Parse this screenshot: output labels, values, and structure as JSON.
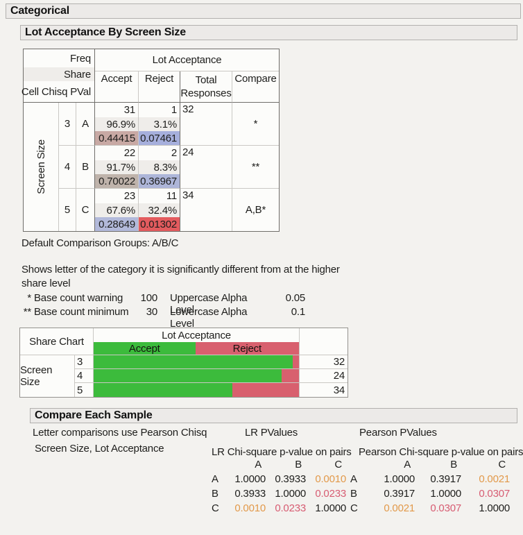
{
  "colors": {
    "accent_green": "#3cbb3c",
    "accent_red": "#d8606e",
    "sig_orange": "#e2994a",
    "sig_rose": "#d75c72"
  },
  "outline": {
    "categorical": "Categorical",
    "lot_acceptance_by_screen_size": "Lot Acceptance By Screen Size",
    "compare_each_sample": "Compare Each Sample"
  },
  "freq_table": {
    "stub_lines": [
      "Freq",
      "Share",
      "Cell Chisq PVal"
    ],
    "group_header": "Lot Acceptance",
    "col_headers": [
      "Accept",
      "Reject",
      "Total Responses",
      "Compare"
    ],
    "row_axis": "Screen Size",
    "rows": [
      {
        "level": "3",
        "letter": "A",
        "accept": {
          "freq": "31",
          "share": "96.9%",
          "pval": "0.44415",
          "pval_bg": "#c8a9a4"
        },
        "reject": {
          "freq": "1",
          "share": "3.1%",
          "pval": "0.07461",
          "pval_bg": "#a6afdc"
        },
        "total": "32",
        "compare": "*"
      },
      {
        "level": "4",
        "letter": "B",
        "accept": {
          "freq": "22",
          "share": "91.7%",
          "pval": "0.70022",
          "pval_bg": "#bfb3ab"
        },
        "reject": {
          "freq": "2",
          "share": "8.3%",
          "pval": "0.36967",
          "pval_bg": "#adb5d8"
        },
        "total": "24",
        "compare": "**"
      },
      {
        "level": "5",
        "letter": "C",
        "accept": {
          "freq": "23",
          "share": "67.6%",
          "pval": "0.28649",
          "pval_bg": "#b2b9da"
        },
        "reject": {
          "freq": "11",
          "share": "32.4%",
          "pval": "0.01302",
          "pval_bg": "#e35b5e"
        },
        "total": "34",
        "compare": "A,B*"
      }
    ]
  },
  "notes": {
    "default_groups": "Default Comparison Groups: A/B/C",
    "shows_letter_line1": "Shows letter of the category it is significantly different from at the higher",
    "shows_letter_line2": "share level",
    "legend_rows": [
      {
        "star": "*",
        "label": "Base count warning",
        "value": "100",
        "label2": "Uppercase Alpha Level",
        "value2": "0.05"
      },
      {
        "star": "**",
        "label": "Base count minimum",
        "value": "30",
        "label2": "Lowercase Alpha Level",
        "value2": "0.1"
      }
    ]
  },
  "share_chart": {
    "title": "Share Chart",
    "group_header": "Lot Acceptance",
    "row_axis": "Screen Size",
    "legend": [
      {
        "label": "Accept",
        "width_pct": 49.5
      },
      {
        "label": "Reject",
        "width_pct": 50.5
      }
    ],
    "rows": [
      {
        "level": "3",
        "accept_pct": 96.9,
        "reject_pct": 3.1,
        "total": "32"
      },
      {
        "level": "4",
        "accept_pct": 91.7,
        "reject_pct": 8.3,
        "total": "24"
      },
      {
        "level": "5",
        "accept_pct": 67.6,
        "reject_pct": 32.4,
        "total": "34"
      }
    ]
  },
  "compare": {
    "note_line1": "Letter comparisons use Pearson Chisq",
    "note_line2": "Screen Size, Lot Acceptance",
    "lr_header": "LR PValues",
    "pearson_header": "Pearson PValues",
    "lr_matrix": {
      "title": "LR Chi-square p-value on pairs",
      "cols": [
        "A",
        "B",
        "C"
      ],
      "rows": [
        {
          "label": "A",
          "v1": "1.0000",
          "v2": "0.3933",
          "v3": "0.0010"
        },
        {
          "label": "B",
          "v1": "0.3933",
          "v2": "1.0000",
          "v3": "0.0233"
        },
        {
          "label": "C",
          "v1": "0.0010",
          "v2": "0.0233",
          "v3": "1.0000"
        }
      ]
    },
    "pearson_matrix": {
      "title": "Pearson Chi-square p-value on pairs",
      "cols": [
        "A",
        "B",
        "C"
      ],
      "rows": [
        {
          "label": "A",
          "v1": "1.0000",
          "v2": "0.3917",
          "v3": "0.0021"
        },
        {
          "label": "B",
          "v1": "0.3917",
          "v2": "1.0000",
          "v3": "0.0307"
        },
        {
          "label": "C",
          "v1": "0.0021",
          "v2": "0.0307",
          "v3": "1.0000"
        }
      ]
    }
  },
  "chart_data": {
    "type": "bar",
    "orientation": "horizontal",
    "stacked": true,
    "title": "Share Chart",
    "group_label": "Lot Acceptance",
    "categories": [
      "3",
      "4",
      "5"
    ],
    "series": [
      {
        "name": "Accept",
        "values": [
          96.9,
          91.7,
          67.6
        ]
      },
      {
        "name": "Reject",
        "values": [
          3.1,
          8.3,
          32.4
        ]
      }
    ],
    "totals": [
      32,
      24,
      34
    ],
    "xlabel": "",
    "ylabel": "Screen Size",
    "xlim": [
      0,
      100
    ],
    "legend_position": "top",
    "grid": false
  }
}
